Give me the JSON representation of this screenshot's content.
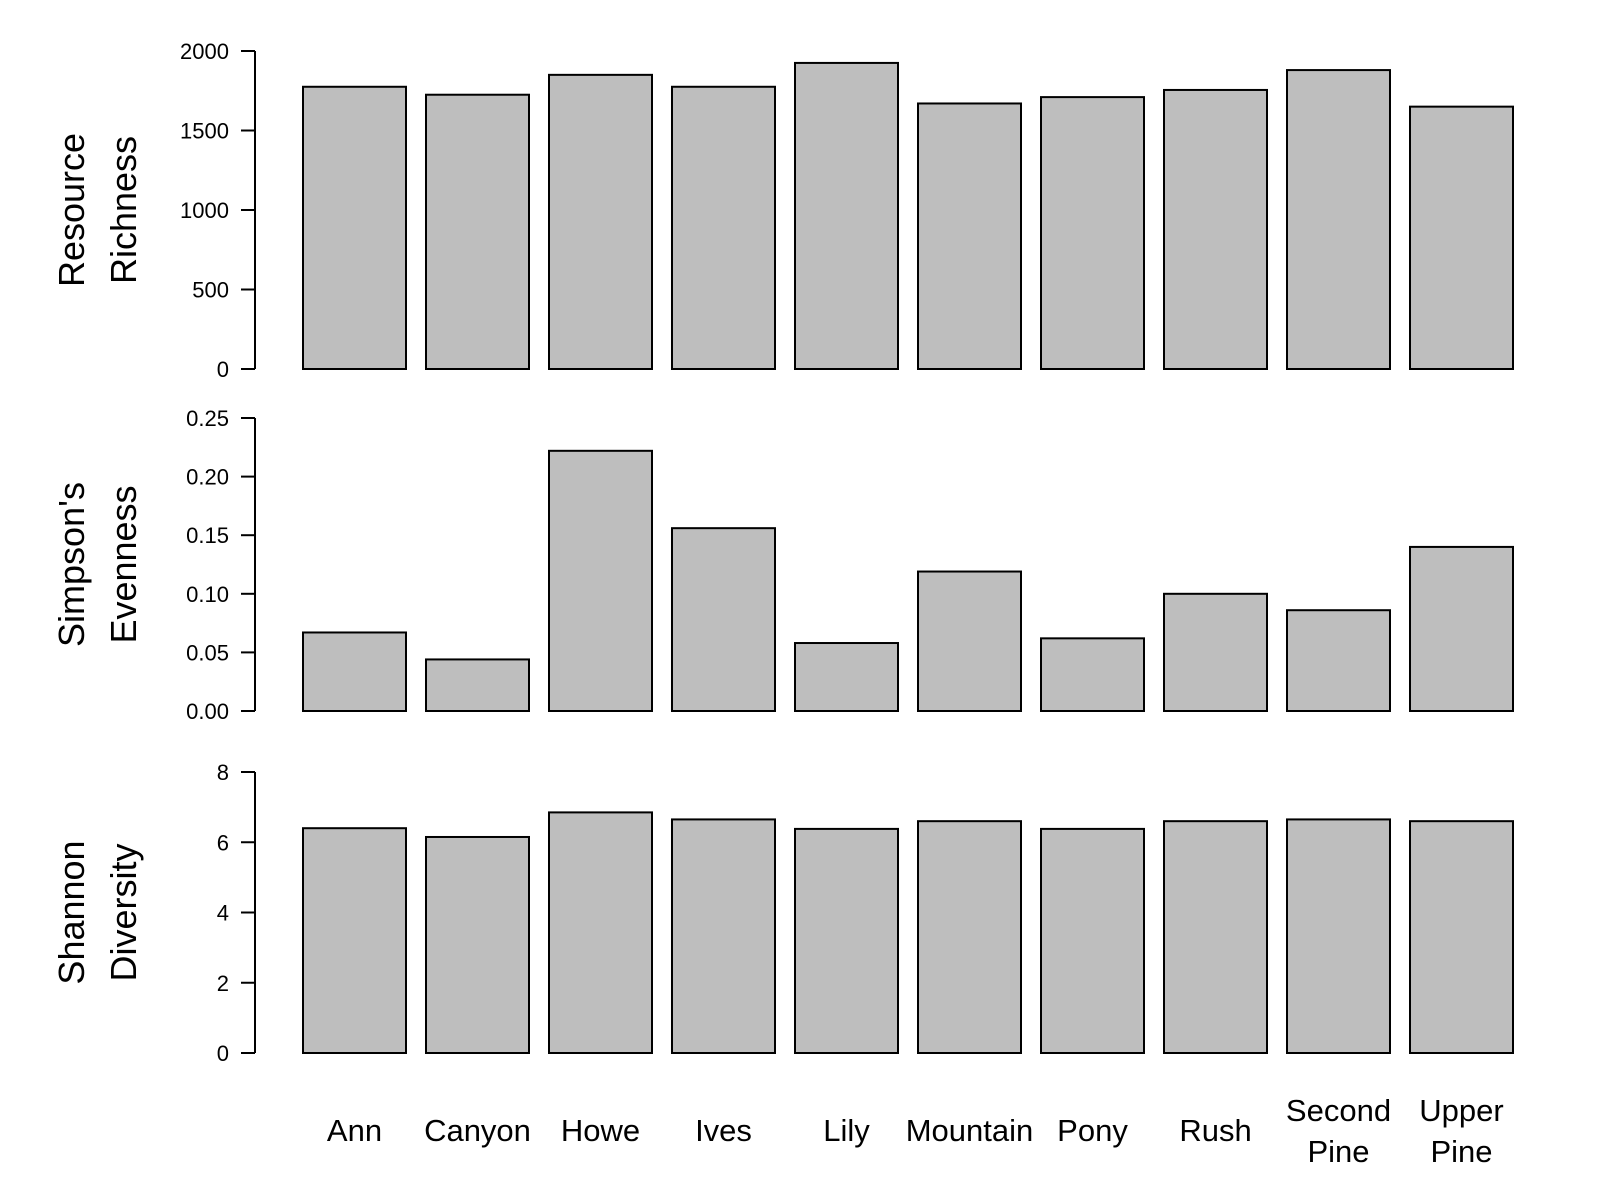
{
  "chart_data": [
    {
      "type": "bar",
      "ylabel_lines": [
        "Resource",
        "Richness"
      ],
      "categories": [
        "Ann",
        "Canyon",
        "Howe",
        "Ives",
        "Lily",
        "Mountain",
        "Pony",
        "Rush",
        "Second Pine",
        "Upper Pine"
      ],
      "values": [
        1775,
        1725,
        1850,
        1775,
        1925,
        1670,
        1710,
        1755,
        1880,
        1650
      ],
      "ylim": [
        0,
        2000
      ],
      "yticks": [
        "0",
        "500",
        "1000",
        "1500",
        "2000"
      ],
      "grid": false,
      "bar_color": "#bebebe"
    },
    {
      "type": "bar",
      "ylabel_lines": [
        "Simpson's",
        "Evenness"
      ],
      "categories": [
        "Ann",
        "Canyon",
        "Howe",
        "Ives",
        "Lily",
        "Mountain",
        "Pony",
        "Rush",
        "Second Pine",
        "Upper Pine"
      ],
      "values": [
        0.067,
        0.044,
        0.222,
        0.156,
        0.058,
        0.119,
        0.062,
        0.1,
        0.086,
        0.14
      ],
      "ylim": [
        0,
        0.25
      ],
      "yticks": [
        "0.00",
        "0.05",
        "0.10",
        "0.15",
        "0.20",
        "0.25"
      ],
      "grid": false,
      "bar_color": "#bebebe"
    },
    {
      "type": "bar",
      "ylabel_lines": [
        "Shannon",
        "Diversity"
      ],
      "categories": [
        "Ann",
        "Canyon",
        "Howe",
        "Ives",
        "Lily",
        "Mountain",
        "Pony",
        "Rush",
        "Second Pine",
        "Upper Pine"
      ],
      "values": [
        6.4,
        6.15,
        6.85,
        6.65,
        6.38,
        6.6,
        6.38,
        6.6,
        6.65,
        6.6
      ],
      "ylim": [
        0,
        8
      ],
      "yticks": [
        "0",
        "2",
        "4",
        "6",
        "8"
      ],
      "grid": false,
      "bar_color": "#bebebe"
    }
  ],
  "x_axis": {
    "category_label_lines": [
      [
        "Ann"
      ],
      [
        "Canyon"
      ],
      [
        "Howe"
      ],
      [
        "Ives"
      ],
      [
        "Lily"
      ],
      [
        "Mountain"
      ],
      [
        "Pony"
      ],
      [
        "Rush"
      ],
      [
        "Second",
        "Pine"
      ],
      [
        "Upper",
        "Pine"
      ]
    ]
  }
}
